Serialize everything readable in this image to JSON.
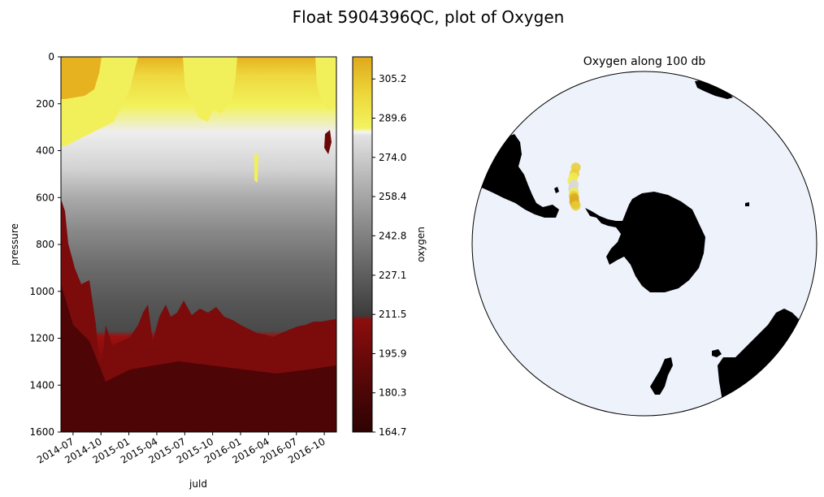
{
  "suptitle": "Float 5904396QC, plot of Oxygen",
  "colors": {
    "section_top": "#e5b01f",
    "section_mid": "#f0f0f0",
    "section_deep": "#3a0505",
    "ocean": "#edf2fb",
    "land": "#000000"
  },
  "chart_data": [
    {
      "type": "heatmap",
      "title": "",
      "xlabel": "juld",
      "ylabel": "pressure",
      "x_ticks": [
        "2014-07",
        "2014-10",
        "2015-01",
        "2015-04",
        "2015-07",
        "2015-10",
        "2016-01",
        "2016-04",
        "2016-07",
        "2016-10"
      ],
      "x_range": [
        "2014-06",
        "2016-11"
      ],
      "y_ticks": [
        0,
        200,
        400,
        600,
        800,
        1000,
        1200,
        1400,
        1600
      ],
      "ylim": [
        1600,
        0
      ],
      "y_inverted": true,
      "colorbar": {
        "label": "oxygen",
        "ticks": [
          305.2,
          289.6,
          274.0,
          258.4,
          242.8,
          227.1,
          211.5,
          195.9,
          180.3,
          164.7
        ],
        "range": [
          164.7,
          314.0
        ],
        "colormap": "dark red (low) / grey (mid) / yellow-gold (high)"
      },
      "profile": [
        {
          "month": "2014-06",
          "shallow_high": 310,
          "grey_top": 330,
          "red_top": 600
        },
        {
          "month": "2014-07",
          "shallow_high": 305,
          "grey_top": 320,
          "red_top": 760
        },
        {
          "month": "2014-08",
          "shallow_high": 300,
          "grey_top": 300,
          "red_top": 820
        },
        {
          "month": "2014-09",
          "shallow_high": 296,
          "grey_top": 300,
          "red_top": 1120
        },
        {
          "month": "2014-12",
          "shallow_high": 292,
          "grey_top": 280,
          "red_top": 1150
        },
        {
          "month": "2015-03",
          "shallow_high": 285,
          "grey_top": 280,
          "red_top": 1180
        },
        {
          "month": "2015-06",
          "shallow_high": 290,
          "grey_top": 280,
          "red_top": 1160
        },
        {
          "month": "2015-09",
          "shallow_high": 292,
          "grey_top": 290,
          "red_top": 1160
        },
        {
          "month": "2016-01",
          "shallow_high": 285,
          "grey_top": 260,
          "red_top": 1200
        },
        {
          "month": "2016-04",
          "shallow_high": 286,
          "grey_top": 250,
          "red_top": 1220
        },
        {
          "month": "2016-07",
          "shallow_high": 292,
          "grey_top": 250,
          "red_top": 1180
        },
        {
          "month": "2016-11",
          "shallow_high": 300,
          "grey_top": 240,
          "red_top": 1130
        }
      ]
    },
    {
      "type": "scatter",
      "title": "Oxygen along 100 db",
      "projection": "south polar stereographic",
      "points": [
        {
          "lon": -45,
          "lat": -60,
          "oxygen": 300
        },
        {
          "lon": -43,
          "lat": -60.5,
          "oxygen": 295
        },
        {
          "lon": -41,
          "lat": -61,
          "oxygen": 290
        },
        {
          "lon": -40,
          "lat": -62,
          "oxygen": 285
        },
        {
          "lon": -38,
          "lat": -62.5,
          "oxygen": 280
        },
        {
          "lon": -37,
          "lat": -63,
          "oxygen": 282
        },
        {
          "lon": -36,
          "lat": -63.5,
          "oxygen": 290
        },
        {
          "lon": -34,
          "lat": -64,
          "oxygen": 300
        },
        {
          "lon": -33,
          "lat": -64.5,
          "oxygen": 305
        },
        {
          "lon": -31,
          "lat": -65,
          "oxygen": 310
        },
        {
          "lon": -30,
          "lat": -65.5,
          "oxygen": 306
        },
        {
          "lon": -29,
          "lat": -66,
          "oxygen": 300
        },
        {
          "lon": -48,
          "lat": -59,
          "oxygen": 298
        }
      ]
    }
  ]
}
